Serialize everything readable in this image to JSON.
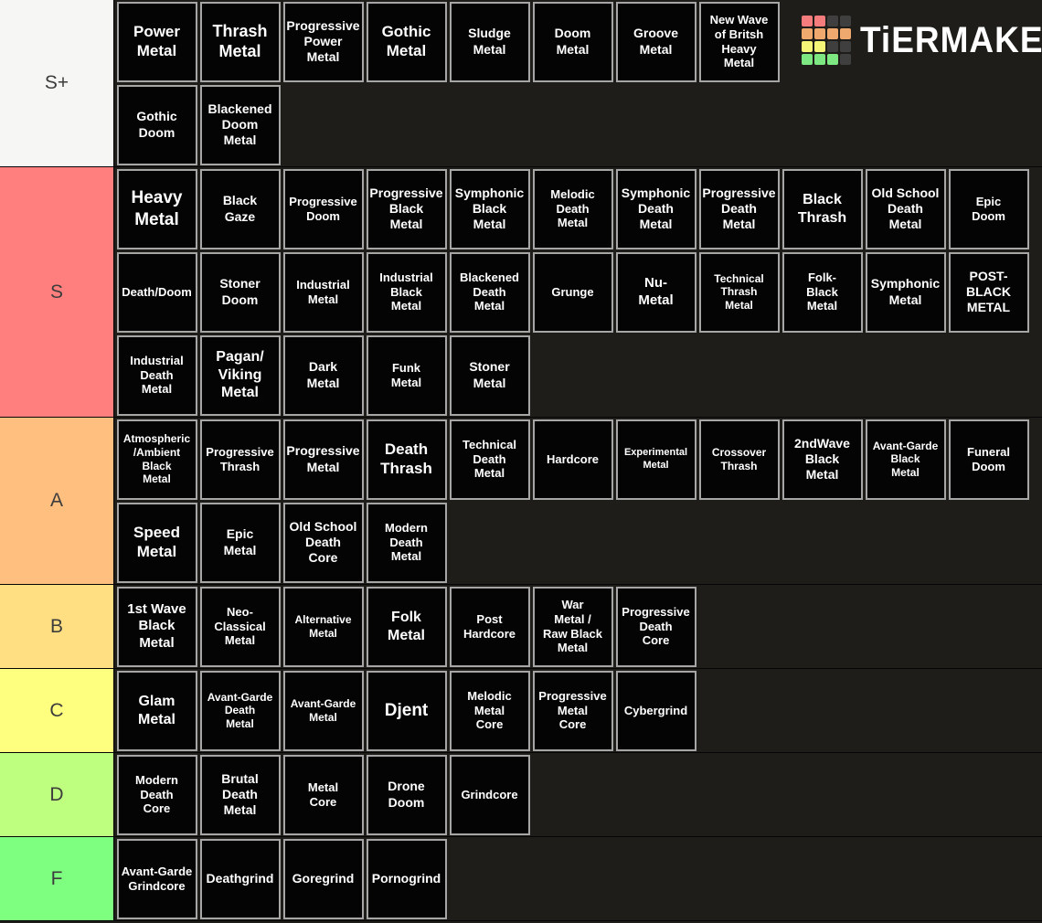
{
  "page": {
    "background": "#1e1d1a",
    "tile_border_color": "#a6a6a6",
    "tile_background": "#040404"
  },
  "logo": {
    "text": "TiERMAKER",
    "grid_colors": [
      [
        "#f47c7c",
        "#f47c7c",
        "#3f3f3f",
        "#3f3f3f"
      ],
      [
        "#efa96e",
        "#efa96e",
        "#efa96e",
        "#efa96e"
      ],
      [
        "#f5f578",
        "#f5f578",
        "#3f3f3f",
        "#3f3f3f"
      ],
      [
        "#7de881",
        "#7de881",
        "#7de881",
        "#3f3f3f"
      ]
    ]
  },
  "tiers": [
    {
      "label": "S+",
      "color": "#f6f6f5",
      "rows": [
        [
          {
            "label": "Power\nMetal",
            "size": 17
          },
          {
            "label": "Thrash\nMetal",
            "size": 18
          },
          {
            "label": "Progressive\nPower\nMetal",
            "size": 14
          },
          {
            "label": "Gothic\nMetal",
            "size": 17
          },
          {
            "label": "Sludge\nMetal",
            "size": 14
          },
          {
            "label": "Doom\nMetal",
            "size": 14
          },
          {
            "label": "Groove\nMetal",
            "size": 14
          },
          {
            "label": "New Wave\nof Britsh\nHeavy\nMetal",
            "size": 13
          }
        ],
        [
          {
            "label": "Gothic\nDoom",
            "size": 14
          },
          {
            "label": "Blackened\nDoom\nMetal",
            "size": 14
          }
        ]
      ]
    },
    {
      "label": "S",
      "color": "#ff7f7e",
      "rows": [
        [
          {
            "label": "Heavy\nMetal",
            "size": 19
          },
          {
            "label": "Black\nGaze",
            "size": 14
          },
          {
            "label": "Progressive\nDoom",
            "size": 13
          },
          {
            "label": "Progressive\nBlack\nMetal",
            "size": 14
          },
          {
            "label": "Symphonic\nBlack\nMetal",
            "size": 14
          },
          {
            "label": "Melodic\nDeath\nMetal",
            "size": 13
          },
          {
            "label": "Symphonic\nDeath\nMetal",
            "size": 14
          },
          {
            "label": "Progressive\nDeath\nMetal",
            "size": 14
          },
          {
            "label": "Black\nThrash",
            "size": 16
          },
          {
            "label": "Old School\nDeath\nMetal",
            "size": 14
          },
          {
            "label": "Epic\nDoom",
            "size": 13
          }
        ],
        [
          {
            "label": "Death/Doom",
            "size": 13
          },
          {
            "label": "Stoner\nDoom",
            "size": 14
          },
          {
            "label": "Industrial\nMetal",
            "size": 13
          },
          {
            "label": "Industrial\nBlack\nMetal",
            "size": 13
          },
          {
            "label": "Blackened\nDeath\nMetal",
            "size": 13
          },
          {
            "label": "Grunge",
            "size": 13
          },
          {
            "label": "Nu-\nMetal",
            "size": 15
          },
          {
            "label": "Technical\nThrash\nMetal",
            "size": 12
          },
          {
            "label": "Folk-\nBlack\nMetal",
            "size": 13
          },
          {
            "label": "Symphonic\nMetal",
            "size": 14
          },
          {
            "label": "POST-\nBLACK\nMETAL",
            "size": 14
          }
        ],
        [
          {
            "label": "Industrial\nDeath\nMetal",
            "size": 13
          },
          {
            "label": "Pagan/\nViking\nMetal",
            "size": 16
          },
          {
            "label": "Dark\nMetal",
            "size": 14
          },
          {
            "label": "Funk\nMetal",
            "size": 13
          },
          {
            "label": "Stoner\nMetal",
            "size": 14
          }
        ]
      ]
    },
    {
      "label": "A",
      "color": "#ffbf7f",
      "rows": [
        [
          {
            "label": "Atmospheric\n/Ambient\nBlack\nMetal",
            "size": 12
          },
          {
            "label": "Progressive\nThrash",
            "size": 13
          },
          {
            "label": "Progressive\nMetal",
            "size": 14
          },
          {
            "label": "Death\nThrash",
            "size": 17
          },
          {
            "label": "Technical\nDeath\nMetal",
            "size": 13
          },
          {
            "label": "Hardcore",
            "size": 13
          },
          {
            "label": "Experimental\nMetal",
            "size": 11
          },
          {
            "label": "Crossover\nThrash",
            "size": 12
          },
          {
            "label": "2ndWave\nBlack\nMetal",
            "size": 14
          },
          {
            "label": "Avant-Garde\nBlack\nMetal",
            "size": 12
          },
          {
            "label": "Funeral\nDoom",
            "size": 13
          }
        ],
        [
          {
            "label": "Speed\nMetal",
            "size": 17
          },
          {
            "label": "Epic\nMetal",
            "size": 14
          },
          {
            "label": "Old School\nDeath\nCore",
            "size": 14
          },
          {
            "label": "Modern\nDeath\nMetal",
            "size": 13
          }
        ]
      ]
    },
    {
      "label": "B",
      "color": "#ffdf81",
      "rows": [
        [
          {
            "label": "1st Wave\nBlack\nMetal",
            "size": 15
          },
          {
            "label": "Neo-\nClassical\nMetal",
            "size": 13
          },
          {
            "label": "Alternative\nMetal",
            "size": 12
          },
          {
            "label": "Folk\nMetal",
            "size": 16
          },
          {
            "label": "Post\nHardcore",
            "size": 13
          },
          {
            "label": "War\nMetal /\nRaw Black\nMetal",
            "size": 13
          },
          {
            "label": "Progressive\nDeath\nCore",
            "size": 13
          }
        ]
      ]
    },
    {
      "label": "C",
      "color": "#feff7f",
      "rows": [
        [
          {
            "label": "Glam\nMetal",
            "size": 16
          },
          {
            "label": "Avant-Garde\nDeath\nMetal",
            "size": 12
          },
          {
            "label": "Avant-Garde\nMetal",
            "size": 12
          },
          {
            "label": "Djent",
            "size": 19
          },
          {
            "label": "Melodic\nMetal\nCore",
            "size": 13
          },
          {
            "label": "Progressive\nMetal\nCore",
            "size": 13
          },
          {
            "label": "Cybergrind",
            "size": 13
          }
        ]
      ]
    },
    {
      "label": "D",
      "color": "#beff7f",
      "rows": [
        [
          {
            "label": "Modern\nDeath\nCore",
            "size": 13
          },
          {
            "label": "Brutal\nDeath\nMetal",
            "size": 14
          },
          {
            "label": "Metal\nCore",
            "size": 13
          },
          {
            "label": "Drone\nDoom",
            "size": 14
          },
          {
            "label": "Grindcore",
            "size": 13
          }
        ]
      ]
    },
    {
      "label": "F",
      "color": "#7eff80",
      "rows": [
        [
          {
            "label": "Avant-Garde\nGrindcore",
            "size": 13
          },
          {
            "label": "Deathgrind",
            "size": 14
          },
          {
            "label": "Goregrind",
            "size": 14
          },
          {
            "label": "Pornogrind",
            "size": 14
          }
        ]
      ]
    }
  ]
}
